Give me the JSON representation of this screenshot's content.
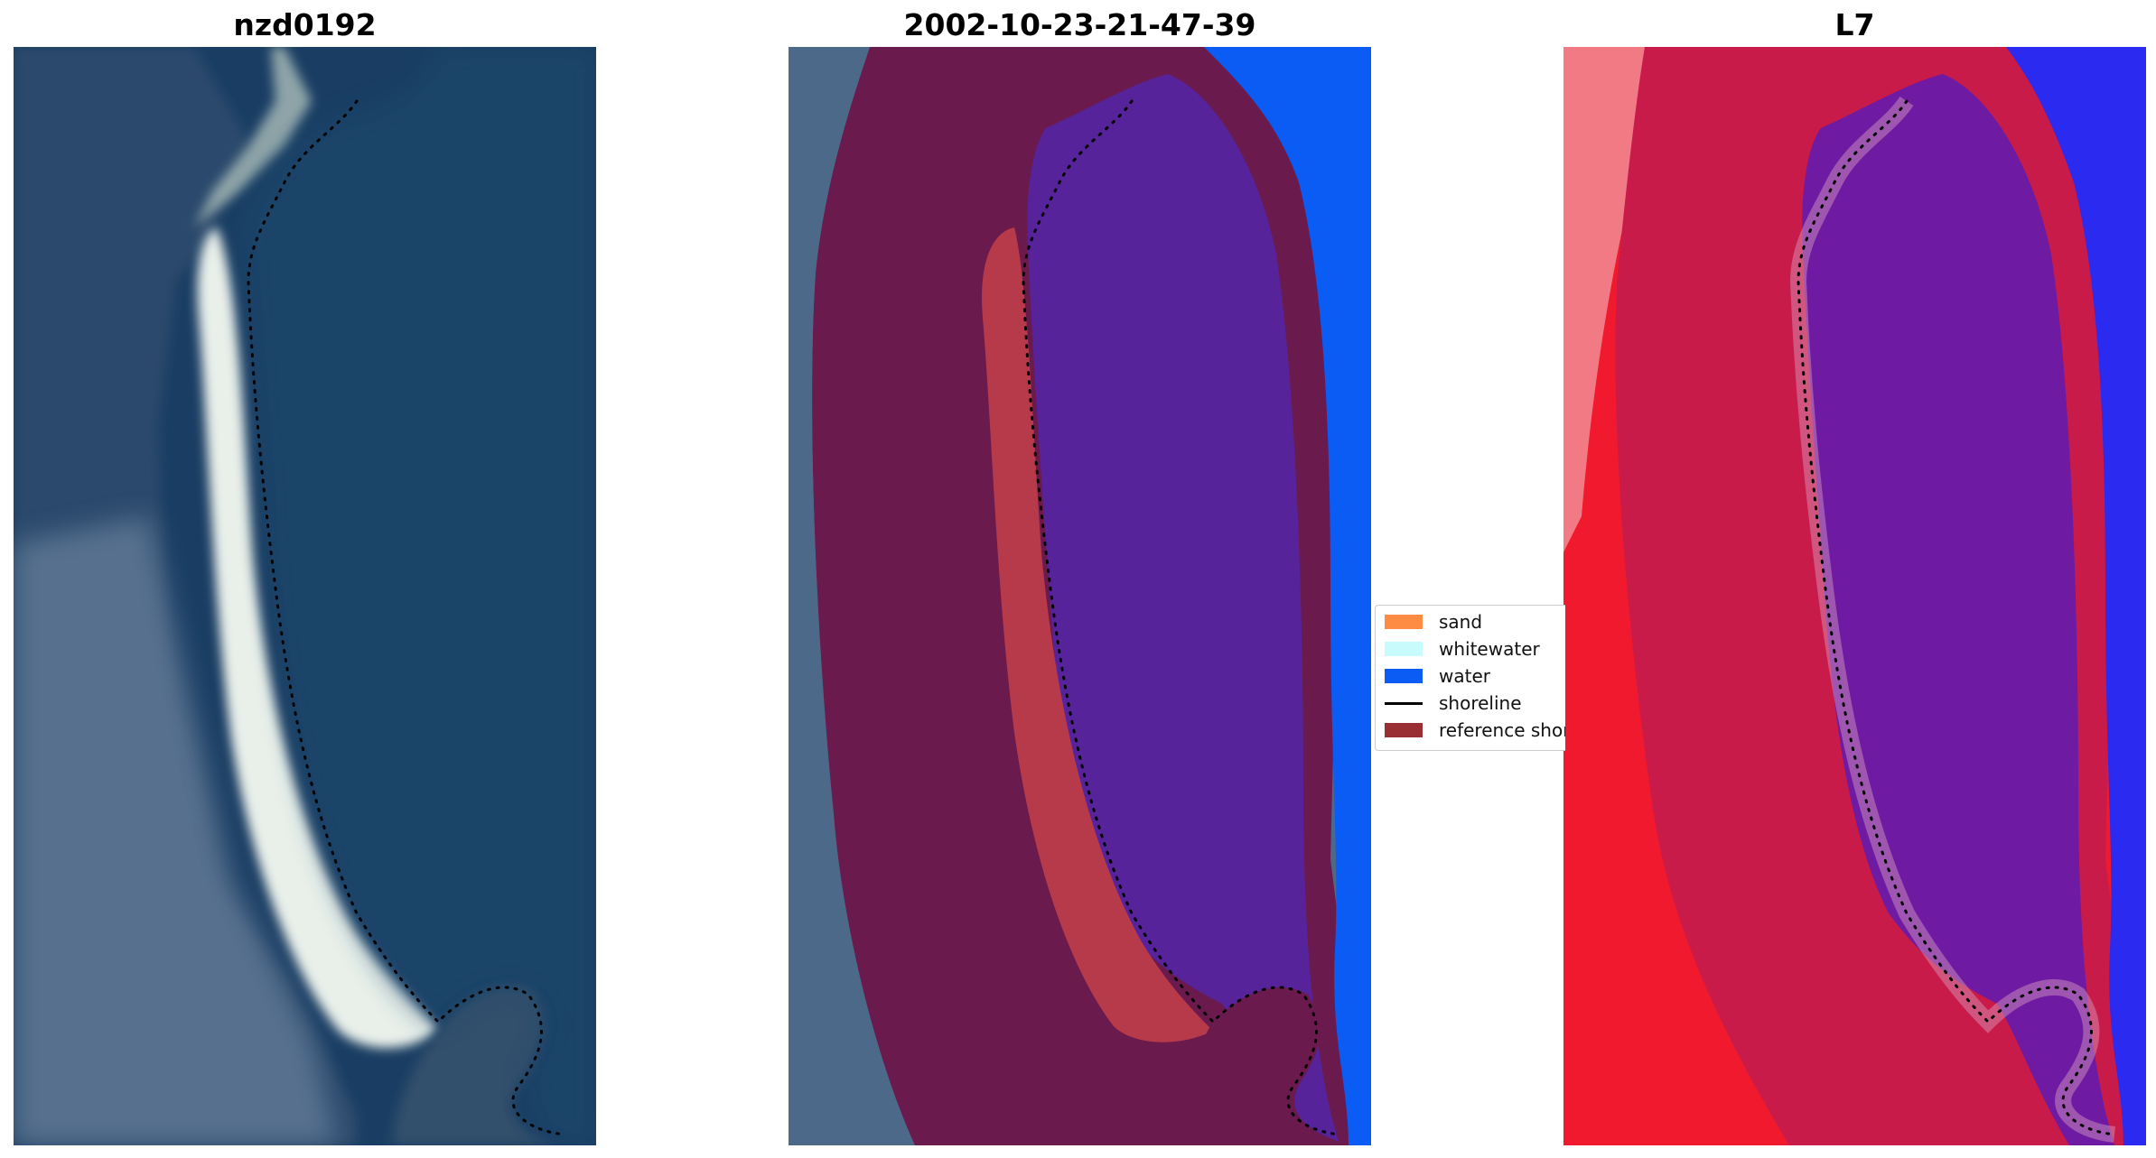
{
  "panels": [
    {
      "title": "nzd0192"
    },
    {
      "title": "2002-10-23-21-47-39"
    },
    {
      "title": "L7"
    }
  ],
  "legend": {
    "items": [
      {
        "label": "sand",
        "color": "#ff8c42",
        "kind": "patch"
      },
      {
        "label": "whitewater",
        "color": "#c8fbfb",
        "kind": "patch"
      },
      {
        "label": "water",
        "color": "#0a5cf5",
        "kind": "patch"
      },
      {
        "label": "shoreline",
        "color": "#000000",
        "kind": "line"
      },
      {
        "label": "reference shoreline buffer",
        "color": "#9a2f33",
        "kind": "patch"
      }
    ]
  },
  "colors": {
    "rgb_water": "#1a3e63",
    "rgb_land": "#4b6786",
    "rgb_sand": "#e8efe9",
    "class_buffer": "#6b1a4e",
    "class_sand_region": "#b73a4a",
    "class_inner": "#57239a",
    "class_water": "#0a5cf5",
    "mndwi_land": "#f0192e",
    "mndwi_buffer": "#c81b4a",
    "mndwi_inner": "#6e1aa3",
    "mndwi_water": "#2a2af0"
  }
}
